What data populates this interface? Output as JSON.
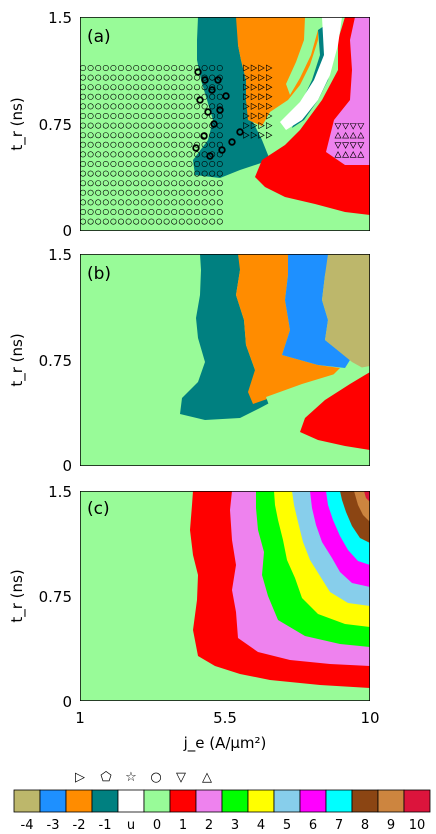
{
  "palette": {
    "m4": "#bdb76b",
    "m3": "#1e90ff",
    "m2": "#ff8c00",
    "m1": "#008080",
    "u": "#ffffff",
    "n0": "#98fb98",
    "p1": "#ff0000",
    "p2": "#ee82ee",
    "p3": "#00ff00",
    "p4": "#ffff00",
    "p5": "#87ceeb",
    "p6": "#ff00ff",
    "p7": "#00ffff",
    "p8": "#8b4513",
    "p9": "#cd853f",
    "p10": "#dc143c"
  },
  "chart_data": [
    {
      "type": "heatmap",
      "panel_label": "(a)",
      "ylabel": "t_r (ns)",
      "ylim": [
        0,
        1.5
      ],
      "xlim": [
        1,
        10
      ],
      "ytick_labels": [
        "0",
        "0.75",
        "1.5"
      ],
      "markers": [
        "circle",
        "pentagon",
        "star",
        "triangle-right",
        "triangle-down",
        "triangle-up"
      ]
    },
    {
      "type": "heatmap",
      "panel_label": "(b)",
      "ylabel": "t_r (ns)",
      "ylim": [
        0,
        1.5
      ],
      "xlim": [
        1,
        10
      ],
      "ytick_labels": [
        "0",
        "0.75",
        "1.5"
      ]
    },
    {
      "type": "heatmap",
      "panel_label": "(c)",
      "xlabel": "j_e (A/µm²)",
      "ylabel": "t_r (ns)",
      "ylim": [
        0,
        1.5
      ],
      "xlim": [
        1,
        10
      ],
      "xtick_labels": [
        "1",
        "5.5",
        "10"
      ],
      "ytick_labels": [
        "0",
        "0.75",
        "1.5"
      ]
    }
  ],
  "legend": {
    "markers": [
      "▷",
      "⬠",
      "☆",
      "○",
      "▽",
      "△"
    ],
    "entries": [
      {
        "label": "-4",
        "color": "#bdb76b"
      },
      {
        "label": "-3",
        "color": "#1e90ff"
      },
      {
        "label": "-2",
        "color": "#ff8c00"
      },
      {
        "label": "-1",
        "color": "#008080"
      },
      {
        "label": "u",
        "color": "#ffffff"
      },
      {
        "label": "0",
        "color": "#98fb98"
      },
      {
        "label": "1",
        "color": "#ff0000"
      },
      {
        "label": "2",
        "color": "#ee82ee"
      },
      {
        "label": "3",
        "color": "#00ff00"
      },
      {
        "label": "4",
        "color": "#ffff00"
      },
      {
        "label": "5",
        "color": "#87ceeb"
      },
      {
        "label": "6",
        "color": "#ff00ff"
      },
      {
        "label": "7",
        "color": "#00ffff"
      },
      {
        "label": "8",
        "color": "#8b4513"
      },
      {
        "label": "9",
        "color": "#cd853f"
      },
      {
        "label": "10",
        "color": "#dc143c"
      }
    ]
  }
}
